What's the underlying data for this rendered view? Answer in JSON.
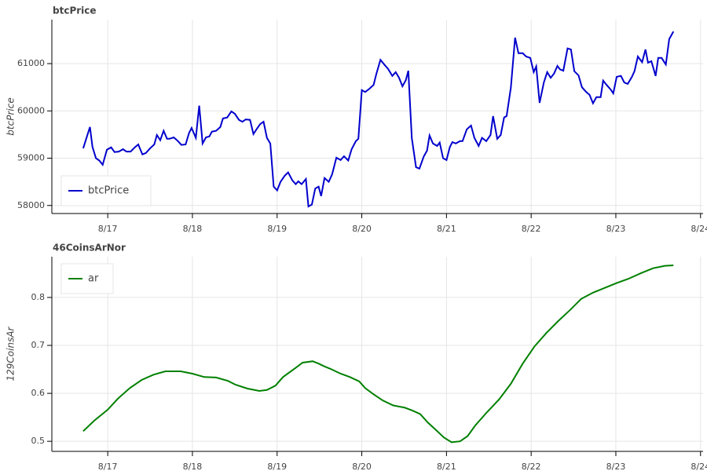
{
  "chart_data": [
    {
      "type": "line",
      "title": "btcPrice",
      "y_label": "btcPrice",
      "legend": "bottom_left",
      "grid": true,
      "xlim": [
        16.34,
        24.03
      ],
      "ylim": [
        57830,
        61930
      ],
      "xticks": [
        {
          "value": 17,
          "label": "8/17"
        },
        {
          "value": 18,
          "label": "8/18"
        },
        {
          "value": 19,
          "label": "8/19"
        },
        {
          "value": 20,
          "label": "8/20"
        },
        {
          "value": 21,
          "label": "8/21"
        },
        {
          "value": 22,
          "label": "8/22"
        },
        {
          "value": 23,
          "label": "8/23"
        },
        {
          "value": 24,
          "label": "8/24"
        }
      ],
      "yticks": [
        58000,
        59000,
        60000,
        61000
      ],
      "x": [
        16.71,
        16.79,
        16.82,
        16.86,
        16.9,
        16.94,
        16.99,
        17.04,
        17.08,
        17.13,
        17.18,
        17.22,
        17.27,
        17.32,
        17.36,
        17.41,
        17.45,
        17.5,
        17.55,
        17.58,
        17.62,
        17.66,
        17.7,
        17.73,
        17.78,
        17.83,
        17.87,
        17.92,
        17.96,
        17.99,
        18.04,
        18.08,
        18.12,
        18.16,
        18.2,
        18.23,
        18.28,
        18.33,
        18.36,
        18.41,
        18.46,
        18.5,
        18.55,
        18.59,
        18.63,
        18.68,
        18.72,
        18.76,
        18.8,
        18.84,
        18.88,
        18.92,
        18.96,
        19.0,
        19.04,
        19.09,
        19.13,
        19.18,
        19.22,
        19.25,
        19.29,
        19.34,
        19.37,
        19.41,
        19.45,
        19.49,
        19.52,
        19.56,
        19.61,
        19.65,
        19.7,
        19.75,
        19.79,
        19.84,
        19.88,
        19.93,
        19.96,
        20.0,
        20.04,
        20.09,
        20.14,
        20.17,
        20.22,
        20.27,
        20.31,
        20.36,
        20.4,
        20.44,
        20.48,
        20.52,
        20.55,
        20.59,
        20.64,
        20.68,
        20.73,
        20.77,
        20.8,
        20.84,
        20.89,
        20.92,
        20.96,
        21.0,
        21.04,
        21.07,
        21.11,
        21.16,
        21.19,
        21.24,
        21.29,
        21.33,
        21.38,
        21.42,
        21.47,
        21.52,
        21.55,
        21.6,
        21.64,
        21.68,
        21.71,
        21.76,
        21.81,
        21.85,
        21.9,
        21.94,
        21.99,
        22.03,
        22.06,
        22.1,
        22.15,
        22.19,
        22.23,
        22.27,
        22.31,
        22.34,
        22.38,
        22.43,
        22.47,
        22.51,
        22.56,
        22.6,
        22.65,
        22.69,
        22.73,
        22.77,
        22.82,
        22.85,
        22.89,
        22.94,
        22.97,
        23.01,
        23.06,
        23.1,
        23.14,
        23.19,
        23.22,
        23.26,
        23.31,
        23.35,
        23.38,
        23.42,
        23.47,
        23.5,
        23.54,
        23.59,
        23.63,
        23.68
      ],
      "series": [
        {
          "name": "btcPrice",
          "color": "#0000cd",
          "values": [
            59210,
            59660,
            59240,
            59000,
            58950,
            58860,
            59180,
            59230,
            59130,
            59140,
            59190,
            59140,
            59140,
            59230,
            59290,
            59080,
            59110,
            59210,
            59290,
            59490,
            59380,
            59580,
            59410,
            59410,
            59440,
            59360,
            59280,
            59290,
            59530,
            59640,
            59430,
            60110,
            59310,
            59440,
            59460,
            59560,
            59580,
            59660,
            59840,
            59860,
            59990,
            59940,
            59810,
            59770,
            59820,
            59810,
            59510,
            59620,
            59720,
            59770,
            59430,
            59310,
            58400,
            58320,
            58500,
            58630,
            58700,
            58530,
            58450,
            58510,
            58450,
            58560,
            57980,
            58020,
            58360,
            58400,
            58200,
            58580,
            58500,
            58660,
            59010,
            58960,
            59040,
            58950,
            59190,
            59360,
            59410,
            60440,
            60400,
            60470,
            60550,
            60770,
            61080,
            60970,
            60890,
            60740,
            60820,
            60700,
            60520,
            60650,
            60850,
            59430,
            58810,
            58780,
            59030,
            59160,
            59480,
            59310,
            59260,
            59330,
            59000,
            58960,
            59240,
            59340,
            59310,
            59360,
            59360,
            59610,
            59690,
            59430,
            59260,
            59430,
            59360,
            59490,
            59890,
            59410,
            59490,
            59860,
            59890,
            60490,
            61550,
            61220,
            61220,
            61150,
            61120,
            60820,
            60940,
            60170,
            60600,
            60820,
            60700,
            60790,
            60950,
            60880,
            60850,
            61320,
            61300,
            60840,
            60750,
            60500,
            60400,
            60340,
            60160,
            60290,
            60290,
            60640,
            60550,
            60450,
            60370,
            60720,
            60740,
            60600,
            60570,
            60720,
            60840,
            61150,
            61030,
            61300,
            61020,
            61050,
            60740,
            61120,
            61120,
            60980,
            61520,
            61680
          ]
        }
      ]
    },
    {
      "type": "line",
      "title": "46CoinsArNor",
      "y_label": "129CoinsAr",
      "legend": "top_left",
      "grid": true,
      "xlim": [
        16.34,
        24.03
      ],
      "ylim": [
        0.479,
        0.885
      ],
      "xticks": [
        {
          "value": 17,
          "label": "8/17"
        },
        {
          "value": 18,
          "label": "8/18"
        },
        {
          "value": 19,
          "label": "8/19"
        },
        {
          "value": 20,
          "label": "8/20"
        },
        {
          "value": 21,
          "label": "8/21"
        },
        {
          "value": 22,
          "label": "8/22"
        },
        {
          "value": 23,
          "label": "8/23"
        },
        {
          "value": 24,
          "label": "8/24"
        }
      ],
      "yticks": [
        0.5,
        0.6,
        0.7,
        0.8
      ],
      "x": [
        16.71,
        16.84,
        17.0,
        17.12,
        17.26,
        17.4,
        17.54,
        17.68,
        17.86,
        18.0,
        18.14,
        18.28,
        18.42,
        18.51,
        18.65,
        18.79,
        18.88,
        18.98,
        19.07,
        19.21,
        19.3,
        19.42,
        19.49,
        19.55,
        19.63,
        19.75,
        19.86,
        19.97,
        20.04,
        20.14,
        20.25,
        20.37,
        20.51,
        20.6,
        20.69,
        20.78,
        20.88,
        20.97,
        21.06,
        21.16,
        21.25,
        21.34,
        21.48,
        21.62,
        21.76,
        21.9,
        22.04,
        22.18,
        22.32,
        22.46,
        22.59,
        22.73,
        22.87,
        23.01,
        23.15,
        23.3,
        23.44,
        23.58,
        23.68
      ],
      "series": [
        {
          "name": "ar",
          "color": "#008000",
          "values": [
            0.521,
            0.543,
            0.566,
            0.589,
            0.611,
            0.628,
            0.639,
            0.646,
            0.646,
            0.641,
            0.634,
            0.633,
            0.626,
            0.618,
            0.61,
            0.605,
            0.607,
            0.616,
            0.634,
            0.652,
            0.664,
            0.667,
            0.662,
            0.657,
            0.651,
            0.641,
            0.634,
            0.625,
            0.611,
            0.598,
            0.585,
            0.575,
            0.57,
            0.564,
            0.557,
            0.539,
            0.523,
            0.508,
            0.498,
            0.5,
            0.511,
            0.533,
            0.561,
            0.587,
            0.62,
            0.662,
            0.698,
            0.726,
            0.751,
            0.774,
            0.797,
            0.81,
            0.82,
            0.83,
            0.839,
            0.851,
            0.861,
            0.866,
            0.867
          ]
        }
      ]
    }
  ]
}
